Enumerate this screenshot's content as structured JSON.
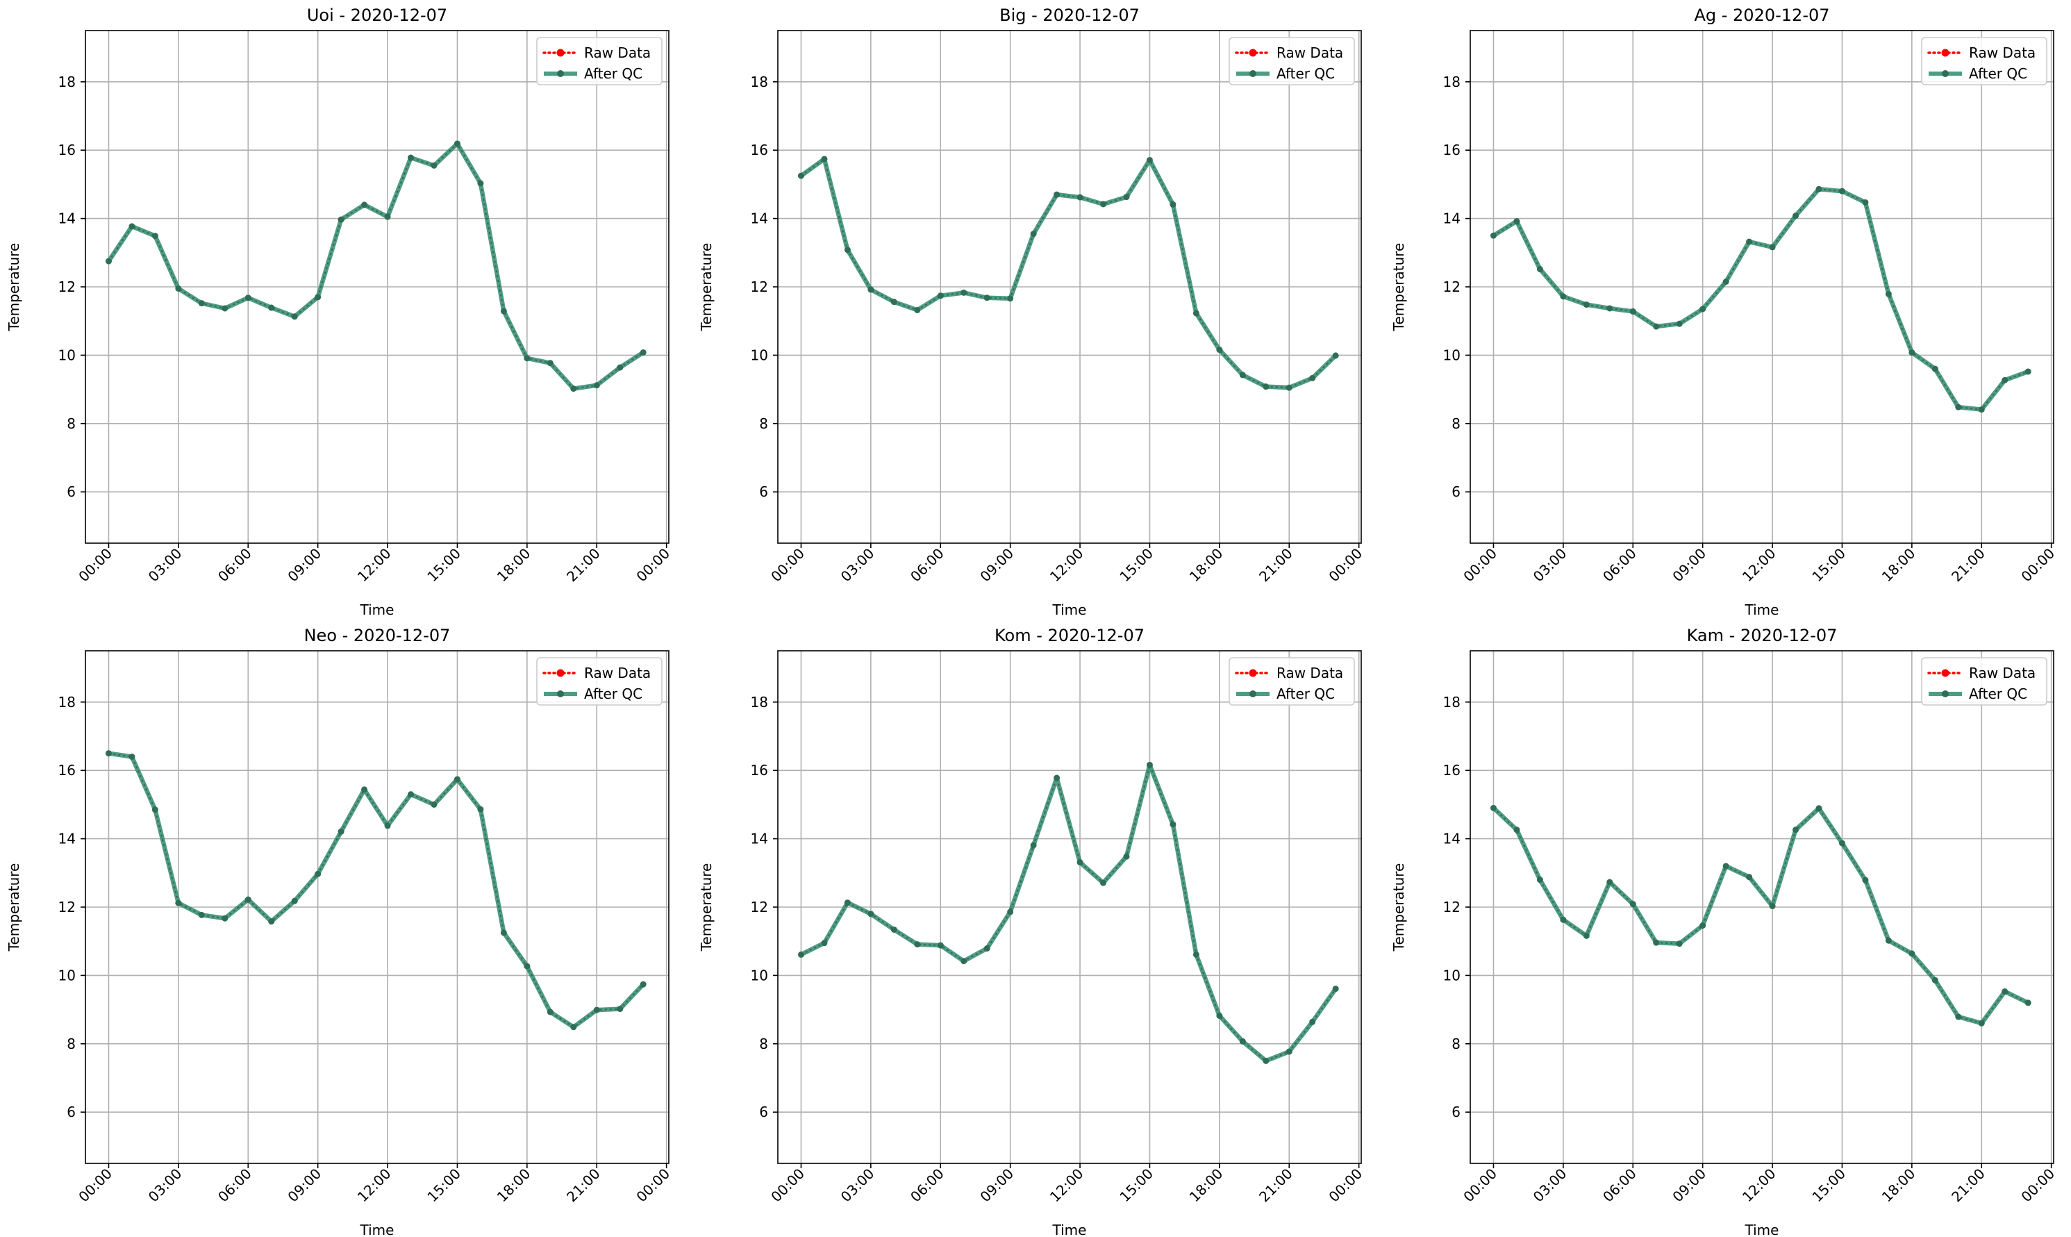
{
  "figure": {
    "background": "#ffffff"
  },
  "chart_data": [
    {
      "type": "line",
      "title": "Uoi - 2020-12-07",
      "xlabel": "Time",
      "ylabel": "Temperature",
      "x_ticks": [
        "00:00",
        "03:00",
        "06:00",
        "09:00",
        "12:00",
        "15:00",
        "18:00",
        "21:00",
        "00:00"
      ],
      "x_hours": [
        0,
        1,
        2,
        3,
        4,
        5,
        6,
        7,
        8,
        9,
        10,
        11,
        12,
        13,
        14,
        15,
        16,
        17,
        18,
        19,
        20,
        21,
        22,
        23
      ],
      "ylim": [
        4.5,
        19.5
      ],
      "y_ticks": [
        6,
        8,
        10,
        12,
        14,
        16,
        18
      ],
      "grid": true,
      "legend_position": "top-right",
      "legend": [
        "Raw Data",
        "After QC"
      ],
      "series": [
        {
          "name": "Raw Data",
          "style": "dotted-marker",
          "color": "#ff0000",
          "values": [
            12.75,
            13.77,
            13.49,
            11.95,
            11.52,
            11.37,
            11.68,
            11.39,
            11.13,
            11.7,
            13.97,
            14.4,
            14.05,
            15.78,
            15.55,
            16.19,
            15.03,
            11.29,
            9.91,
            9.77,
            9.02,
            9.12,
            9.64,
            10.08
          ]
        },
        {
          "name": "After QC",
          "style": "solid-marker",
          "color": "#2e8b6e",
          "values": [
            12.75,
            13.77,
            13.49,
            11.95,
            11.52,
            11.37,
            11.68,
            11.39,
            11.13,
            11.7,
            13.97,
            14.4,
            14.05,
            15.78,
            15.55,
            16.19,
            15.03,
            11.29,
            9.91,
            9.77,
            9.02,
            9.12,
            9.64,
            10.08
          ]
        }
      ]
    },
    {
      "type": "line",
      "title": "Big - 2020-12-07",
      "xlabel": "Time",
      "ylabel": "Temperature",
      "x_ticks": [
        "00:00",
        "03:00",
        "06:00",
        "09:00",
        "12:00",
        "15:00",
        "18:00",
        "21:00",
        "00:00"
      ],
      "x_hours": [
        0,
        1,
        2,
        3,
        4,
        5,
        6,
        7,
        8,
        9,
        10,
        11,
        12,
        13,
        14,
        15,
        16,
        17,
        18,
        19,
        20,
        21,
        22,
        23
      ],
      "ylim": [
        4.5,
        19.5
      ],
      "y_ticks": [
        6,
        8,
        10,
        12,
        14,
        16,
        18
      ],
      "grid": true,
      "legend_position": "top-right",
      "legend": [
        "Raw Data",
        "After QC"
      ],
      "series": [
        {
          "name": "Raw Data",
          "style": "dotted-marker",
          "color": "#ff0000",
          "values": [
            15.25,
            15.74,
            13.08,
            11.92,
            11.56,
            11.32,
            11.74,
            11.83,
            11.68,
            11.66,
            13.55,
            14.7,
            14.62,
            14.42,
            14.63,
            15.71,
            14.41,
            11.23,
            10.16,
            9.42,
            9.08,
            9.05,
            9.33,
            9.99
          ]
        },
        {
          "name": "After QC",
          "style": "solid-marker",
          "color": "#2e8b6e",
          "values": [
            15.25,
            15.74,
            13.08,
            11.92,
            11.56,
            11.32,
            11.74,
            11.83,
            11.68,
            11.66,
            13.55,
            14.7,
            14.62,
            14.42,
            14.63,
            15.71,
            14.41,
            11.23,
            10.16,
            9.42,
            9.08,
            9.05,
            9.33,
            9.99
          ]
        }
      ]
    },
    {
      "type": "line",
      "title": "Ag - 2020-12-07",
      "xlabel": "Time",
      "ylabel": "Temperature",
      "x_ticks": [
        "00:00",
        "03:00",
        "06:00",
        "09:00",
        "12:00",
        "15:00",
        "18:00",
        "21:00",
        "00:00"
      ],
      "x_hours": [
        0,
        1,
        2,
        3,
        4,
        5,
        6,
        7,
        8,
        9,
        10,
        11,
        12,
        13,
        14,
        15,
        16,
        17,
        18,
        19,
        20,
        21,
        22,
        23
      ],
      "ylim": [
        4.5,
        19.5
      ],
      "y_ticks": [
        6,
        8,
        10,
        12,
        14,
        16,
        18
      ],
      "grid": true,
      "legend_position": "top-right",
      "legend": [
        "Raw Data",
        "After QC"
      ],
      "series": [
        {
          "name": "Raw Data",
          "style": "dotted-marker",
          "color": "#ff0000",
          "values": [
            13.5,
            13.92,
            12.52,
            11.72,
            11.48,
            11.37,
            11.28,
            10.84,
            10.92,
            11.35,
            12.15,
            13.32,
            13.16,
            14.08,
            14.86,
            14.8,
            14.47,
            11.79,
            10.08,
            9.6,
            8.48,
            8.41,
            9.27,
            9.52
          ]
        },
        {
          "name": "After QC",
          "style": "solid-marker",
          "color": "#2e8b6e",
          "values": [
            13.5,
            13.92,
            12.52,
            11.72,
            11.48,
            11.37,
            11.28,
            10.84,
            10.92,
            11.35,
            12.15,
            13.32,
            13.16,
            14.08,
            14.86,
            14.8,
            14.47,
            11.79,
            10.08,
            9.6,
            8.48,
            8.41,
            9.27,
            9.52
          ]
        }
      ]
    },
    {
      "type": "line",
      "title": "Neo - 2020-12-07",
      "xlabel": "Time",
      "ylabel": "Temperature",
      "x_ticks": [
        "00:00",
        "03:00",
        "06:00",
        "09:00",
        "12:00",
        "15:00",
        "18:00",
        "21:00",
        "00:00"
      ],
      "x_hours": [
        0,
        1,
        2,
        3,
        4,
        5,
        6,
        7,
        8,
        9,
        10,
        11,
        12,
        13,
        14,
        15,
        16,
        17,
        18,
        19,
        20,
        21,
        22,
        23
      ],
      "ylim": [
        4.5,
        19.5
      ],
      "y_ticks": [
        6,
        8,
        10,
        12,
        14,
        16,
        18
      ],
      "grid": true,
      "legend_position": "top-right",
      "legend": [
        "Raw Data",
        "After QC"
      ],
      "series": [
        {
          "name": "Raw Data",
          "style": "dotted-marker",
          "color": "#ff0000",
          "values": [
            16.5,
            16.4,
            14.85,
            12.12,
            11.77,
            11.67,
            12.22,
            11.58,
            12.18,
            12.97,
            14.21,
            15.44,
            14.38,
            15.3,
            15.0,
            15.74,
            14.86,
            11.25,
            10.27,
            8.93,
            8.49,
            8.99,
            9.02,
            9.74
          ]
        },
        {
          "name": "After QC",
          "style": "solid-marker",
          "color": "#2e8b6e",
          "values": [
            16.5,
            16.4,
            14.85,
            12.12,
            11.77,
            11.67,
            12.22,
            11.58,
            12.18,
            12.97,
            14.21,
            15.44,
            14.38,
            15.3,
            15.0,
            15.74,
            14.86,
            11.25,
            10.27,
            8.93,
            8.49,
            8.99,
            9.02,
            9.74
          ]
        }
      ]
    },
    {
      "type": "line",
      "title": "Kom - 2020-12-07",
      "xlabel": "Time",
      "ylabel": "Temperature",
      "x_ticks": [
        "00:00",
        "03:00",
        "06:00",
        "09:00",
        "12:00",
        "15:00",
        "18:00",
        "21:00",
        "00:00"
      ],
      "x_hours": [
        0,
        1,
        2,
        3,
        4,
        5,
        6,
        7,
        8,
        9,
        10,
        11,
        12,
        13,
        14,
        15,
        16,
        17,
        18,
        19,
        20,
        21,
        22,
        23
      ],
      "ylim": [
        4.5,
        19.5
      ],
      "y_ticks": [
        6,
        8,
        10,
        12,
        14,
        16,
        18
      ],
      "grid": true,
      "legend_position": "top-right",
      "legend": [
        "Raw Data",
        "After QC"
      ],
      "series": [
        {
          "name": "Raw Data",
          "style": "dotted-marker",
          "color": "#ff0000",
          "values": [
            10.61,
            10.95,
            12.13,
            11.8,
            11.34,
            10.91,
            10.88,
            10.42,
            10.79,
            11.86,
            13.81,
            15.78,
            13.31,
            12.71,
            13.48,
            16.16,
            14.42,
            10.61,
            8.82,
            8.07,
            7.5,
            7.77,
            8.64,
            9.61
          ]
        },
        {
          "name": "After QC",
          "style": "solid-marker",
          "color": "#2e8b6e",
          "values": [
            10.61,
            10.95,
            12.13,
            11.8,
            11.34,
            10.91,
            10.88,
            10.42,
            10.79,
            11.86,
            13.81,
            15.78,
            13.31,
            12.71,
            13.48,
            16.16,
            14.42,
            10.61,
            8.82,
            8.07,
            7.5,
            7.77,
            8.64,
            9.61
          ]
        }
      ]
    },
    {
      "type": "line",
      "title": "Kam - 2020-12-07",
      "xlabel": "Time",
      "ylabel": "Temperature",
      "x_ticks": [
        "00:00",
        "03:00",
        "06:00",
        "09:00",
        "12:00",
        "15:00",
        "18:00",
        "21:00",
        "00:00"
      ],
      "x_hours": [
        0,
        1,
        2,
        3,
        4,
        5,
        6,
        7,
        8,
        9,
        10,
        11,
        12,
        13,
        14,
        15,
        16,
        17,
        18,
        19,
        20,
        21,
        22,
        23
      ],
      "ylim": [
        4.5,
        19.5
      ],
      "y_ticks": [
        6,
        8,
        10,
        12,
        14,
        16,
        18
      ],
      "grid": true,
      "legend_position": "top-right",
      "legend": [
        "Raw Data",
        "After QC"
      ],
      "series": [
        {
          "name": "Raw Data",
          "style": "dotted-marker",
          "color": "#ff0000",
          "values": [
            14.9,
            14.26,
            12.8,
            11.63,
            11.16,
            12.73,
            12.09,
            10.96,
            10.93,
            11.46,
            13.2,
            12.88,
            12.03,
            14.26,
            14.89,
            13.87,
            12.79,
            11.02,
            10.64,
            9.86,
            8.79,
            8.6,
            9.53,
            9.2
          ]
        },
        {
          "name": "After QC",
          "style": "solid-marker",
          "color": "#2e8b6e",
          "values": [
            14.9,
            14.26,
            12.8,
            11.63,
            11.16,
            12.73,
            12.09,
            10.96,
            10.93,
            11.46,
            13.2,
            12.88,
            12.03,
            14.26,
            14.89,
            13.87,
            12.79,
            11.02,
            10.64,
            9.86,
            8.79,
            8.6,
            9.53,
            9.2
          ]
        }
      ]
    }
  ]
}
